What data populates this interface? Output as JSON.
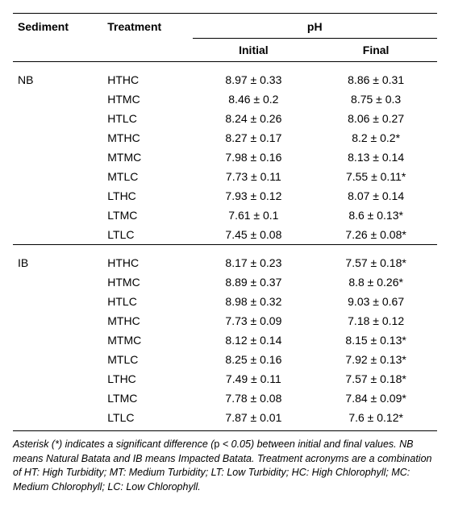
{
  "headers": {
    "sediment": "Sediment",
    "treatment": "Treatment",
    "ph": "pH",
    "initial": "Initial",
    "final": "Final"
  },
  "groups": [
    {
      "sediment": "NB",
      "rows": [
        {
          "treatment": "HTHC",
          "initial": "8.97 ± 0.33",
          "final": "8.86 ± 0.31"
        },
        {
          "treatment": "HTMC",
          "initial": "8.46 ± 0.2",
          "final": "8.75 ± 0.3"
        },
        {
          "treatment": "HTLC",
          "initial": "8.24 ± 0.26",
          "final": "8.06 ± 0.27"
        },
        {
          "treatment": "MTHC",
          "initial": "8.27 ± 0.17",
          "final": "8.2 ± 0.2*"
        },
        {
          "treatment": "MTMC",
          "initial": "7.98 ± 0.16",
          "final": "8.13 ± 0.14"
        },
        {
          "treatment": "MTLC",
          "initial": "7.73 ± 0.11",
          "final": "7.55 ± 0.11*"
        },
        {
          "treatment": "LTHC",
          "initial": "7.93 ± 0.12",
          "final": "8.07 ± 0.14"
        },
        {
          "treatment": "LTMC",
          "initial": "7.61 ± 0.1",
          "final": "8.6 ± 0.13*"
        },
        {
          "treatment": "LTLC",
          "initial": "7.45 ± 0.08",
          "final": "7.26 ± 0.08*"
        }
      ]
    },
    {
      "sediment": "IB",
      "rows": [
        {
          "treatment": "HTHC",
          "initial": "8.17 ± 0.23",
          "final": "7.57 ± 0.18*"
        },
        {
          "treatment": "HTMC",
          "initial": "8.89 ± 0.37",
          "final": "8.8 ± 0.26*"
        },
        {
          "treatment": "HTLC",
          "initial": "8.98 ± 0.32",
          "final": "9.03 ± 0.67"
        },
        {
          "treatment": "MTHC",
          "initial": "7.73 ± 0.09",
          "final": "7.18 ± 0.12"
        },
        {
          "treatment": "MTMC",
          "initial": "8.12 ± 0.14",
          "final": "8.15 ± 0.13*"
        },
        {
          "treatment": "MTLC",
          "initial": "8.25 ± 0.16",
          "final": "7.92 ± 0.13*"
        },
        {
          "treatment": "LTHC",
          "initial": "7.49 ± 0.11",
          "final": "7.57 ± 0.18*"
        },
        {
          "treatment": "LTMC",
          "initial": "7.78 ± 0.08",
          "final": "7.84 ± 0.09*"
        },
        {
          "treatment": "LTLC",
          "initial": "7.87 ± 0.01",
          "final": "7.6 ± 0.12*"
        }
      ]
    }
  ],
  "caption": {
    "line1a": "Asterisk (*) indicates a significant difference (",
    "p": "p",
    "line1b": " < 0.05) between initial and final values. NB means Natural Batata and IB means Impacted Batata. Treatment acronyms are a combination of HT: High Turbidity; MT: Medium Turbidity; LT: Low Turbidity; HC: High Chlorophyll; MC: Medium Chlorophyll; LC: Low Chlorophyll."
  },
  "colors": {
    "text": "#000000",
    "background": "#ffffff",
    "border": "#000000"
  },
  "fonts": {
    "body_size": 14,
    "caption_size": 12.5,
    "family": "Arial, Helvetica, sans-serif"
  }
}
